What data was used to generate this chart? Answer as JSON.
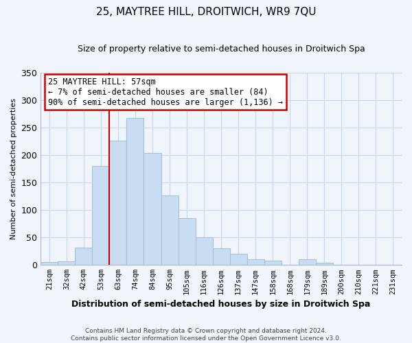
{
  "title": "25, MAYTREE HILL, DROITWICH, WR9 7QU",
  "subtitle": "Size of property relative to semi-detached houses in Droitwich Spa",
  "xlabel": "Distribution of semi-detached houses by size in Droitwich Spa",
  "ylabel": "Number of semi-detached properties",
  "bar_labels": [
    "21sqm",
    "32sqm",
    "42sqm",
    "53sqm",
    "63sqm",
    "74sqm",
    "84sqm",
    "95sqm",
    "105sqm",
    "116sqm",
    "126sqm",
    "137sqm",
    "147sqm",
    "158sqm",
    "168sqm",
    "179sqm",
    "189sqm",
    "200sqm",
    "210sqm",
    "221sqm",
    "231sqm"
  ],
  "bar_values": [
    5,
    7,
    31,
    180,
    226,
    267,
    204,
    126,
    85,
    50,
    30,
    20,
    10,
    8,
    0,
    10,
    4,
    0,
    0,
    1,
    0
  ],
  "bar_color": "#c9ddf2",
  "bar_edge_color": "#a8c0dc",
  "vline_color": "#cc0000",
  "vline_bar_index": 3,
  "annotation_title": "25 MAYTREE HILL: 57sqm",
  "annotation_line1": "← 7% of semi-detached houses are smaller (84)",
  "annotation_line2": "90% of semi-detached houses are larger (1,136) →",
  "ylim": [
    0,
    350
  ],
  "yticks": [
    0,
    50,
    100,
    150,
    200,
    250,
    300,
    350
  ],
  "footer1": "Contains HM Land Registry data © Crown copyright and database right 2024.",
  "footer2": "Contains public sector information licensed under the Open Government Licence v3.0.",
  "bg_color": "#f0f4fb",
  "grid_color": "#c8d8ec"
}
